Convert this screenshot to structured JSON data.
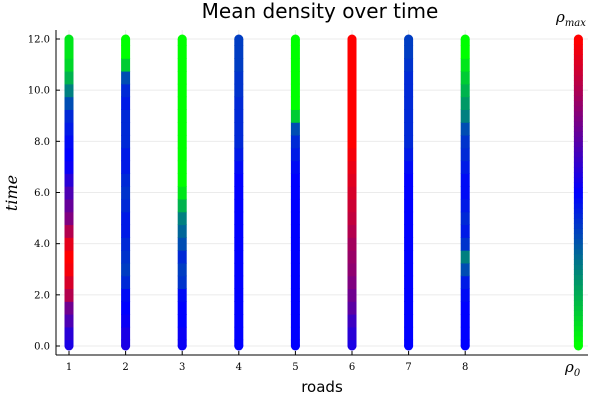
{
  "chart_data": {
    "type": "scatter",
    "title": "Mean density over time",
    "xlabel": "roads",
    "ylabel": "time",
    "x_ticks": [
      "1",
      "2",
      "3",
      "4",
      "5",
      "6",
      "7",
      "8"
    ],
    "y_ticks": [
      "0.0",
      "2.0",
      "4.0",
      "6.0",
      "8.0",
      "10.0",
      "12.0"
    ],
    "ylim": [
      0,
      12
    ],
    "grid": true,
    "colorbar": {
      "min_label": "ρ",
      "min_sub": "0",
      "max_label": "ρ",
      "max_sub": "max",
      "colors": [
        "#00ff00",
        "#0000ff",
        "#ff0000"
      ],
      "x": 10.0
    },
    "time": [
      0,
      0.5,
      1,
      1.5,
      2,
      2.5,
      3,
      3.5,
      4,
      4.5,
      5,
      5.5,
      6,
      6.5,
      7,
      7.5,
      8,
      8.5,
      9,
      9.5,
      10,
      10.5,
      11,
      11.5,
      12
    ],
    "series": [
      {
        "x": 1,
        "density": [
          0.55,
          0.58,
          0.65,
          0.72,
          0.85,
          0.92,
          0.98,
          1.0,
          0.95,
          0.85,
          0.75,
          0.7,
          0.65,
          0.58,
          0.52,
          0.5,
          0.48,
          0.45,
          0.42,
          0.35,
          0.25,
          0.15,
          0.08,
          0.05,
          0.05
        ]
      },
      {
        "x": 2,
        "density": [
          0.55,
          0.55,
          0.52,
          0.5,
          0.48,
          0.42,
          0.38,
          0.4,
          0.42,
          0.45,
          0.45,
          0.42,
          0.4,
          0.42,
          0.45,
          0.45,
          0.42,
          0.42,
          0.42,
          0.45,
          0.42,
          0.35,
          0.1,
          0.0,
          0.0
        ]
      },
      {
        "x": 3,
        "density": [
          0.52,
          0.52,
          0.5,
          0.5,
          0.48,
          0.4,
          0.38,
          0.42,
          0.35,
          0.3,
          0.25,
          0.15,
          0.05,
          0.0,
          0.0,
          0.0,
          0.0,
          0.0,
          0.0,
          0.0,
          0.0,
          0.0,
          0.0,
          0.0,
          0.0
        ]
      },
      {
        "x": 4,
        "density": [
          0.5,
          0.5,
          0.5,
          0.5,
          0.5,
          0.5,
          0.5,
          0.5,
          0.5,
          0.5,
          0.5,
          0.5,
          0.5,
          0.5,
          0.48,
          0.45,
          0.42,
          0.42,
          0.42,
          0.42,
          0.4,
          0.4,
          0.38,
          0.38,
          0.38
        ]
      },
      {
        "x": 5,
        "density": [
          0.5,
          0.5,
          0.5,
          0.5,
          0.5,
          0.5,
          0.5,
          0.5,
          0.5,
          0.5,
          0.5,
          0.5,
          0.5,
          0.5,
          0.48,
          0.45,
          0.42,
          0.35,
          0.1,
          0.0,
          0.0,
          0.0,
          0.0,
          0.0,
          0.0
        ]
      },
      {
        "x": 6,
        "density": [
          0.55,
          0.58,
          0.62,
          0.68,
          0.72,
          0.75,
          0.78,
          0.8,
          0.82,
          0.85,
          0.88,
          0.9,
          0.92,
          0.94,
          0.96,
          0.98,
          1.0,
          1.0,
          1.0,
          1.0,
          1.0,
          1.0,
          1.0,
          1.0,
          1.0
        ]
      },
      {
        "x": 7,
        "density": [
          0.5,
          0.5,
          0.5,
          0.5,
          0.5,
          0.5,
          0.5,
          0.5,
          0.5,
          0.5,
          0.5,
          0.5,
          0.5,
          0.5,
          0.48,
          0.45,
          0.42,
          0.42,
          0.42,
          0.42,
          0.42,
          0.42,
          0.4,
          0.38,
          0.38
        ]
      },
      {
        "x": 8,
        "density": [
          0.5,
          0.5,
          0.5,
          0.5,
          0.48,
          0.45,
          0.35,
          0.25,
          0.4,
          0.45,
          0.42,
          0.45,
          0.48,
          0.48,
          0.45,
          0.42,
          0.4,
          0.35,
          0.25,
          0.2,
          0.15,
          0.1,
          0.05,
          0.0,
          0.0
        ]
      }
    ]
  }
}
